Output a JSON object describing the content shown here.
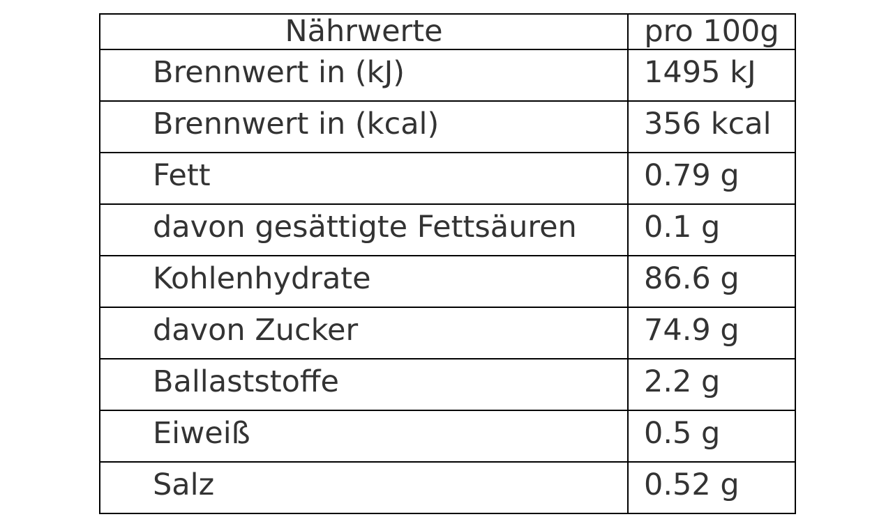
{
  "table": {
    "header": [
      "Nährwerte",
      "pro 100g"
    ],
    "rows": [
      [
        "Brennwert in (kJ)",
        "1495 kJ"
      ],
      [
        "Brennwert in (kcal)",
        "356 kcal"
      ],
      [
        "Fett",
        "0.79 g"
      ],
      [
        "davon gesättigte Fettsäuren",
        "0.1 g"
      ],
      [
        "Kohlenhydrate",
        "86.6 g"
      ],
      [
        "davon Zucker",
        "74.9 g"
      ],
      [
        "Ballaststoffe",
        "2.2 g"
      ],
      [
        "Eiweiß",
        "0.5 g"
      ],
      [
        "Salz",
        "0.52 g"
      ]
    ]
  }
}
